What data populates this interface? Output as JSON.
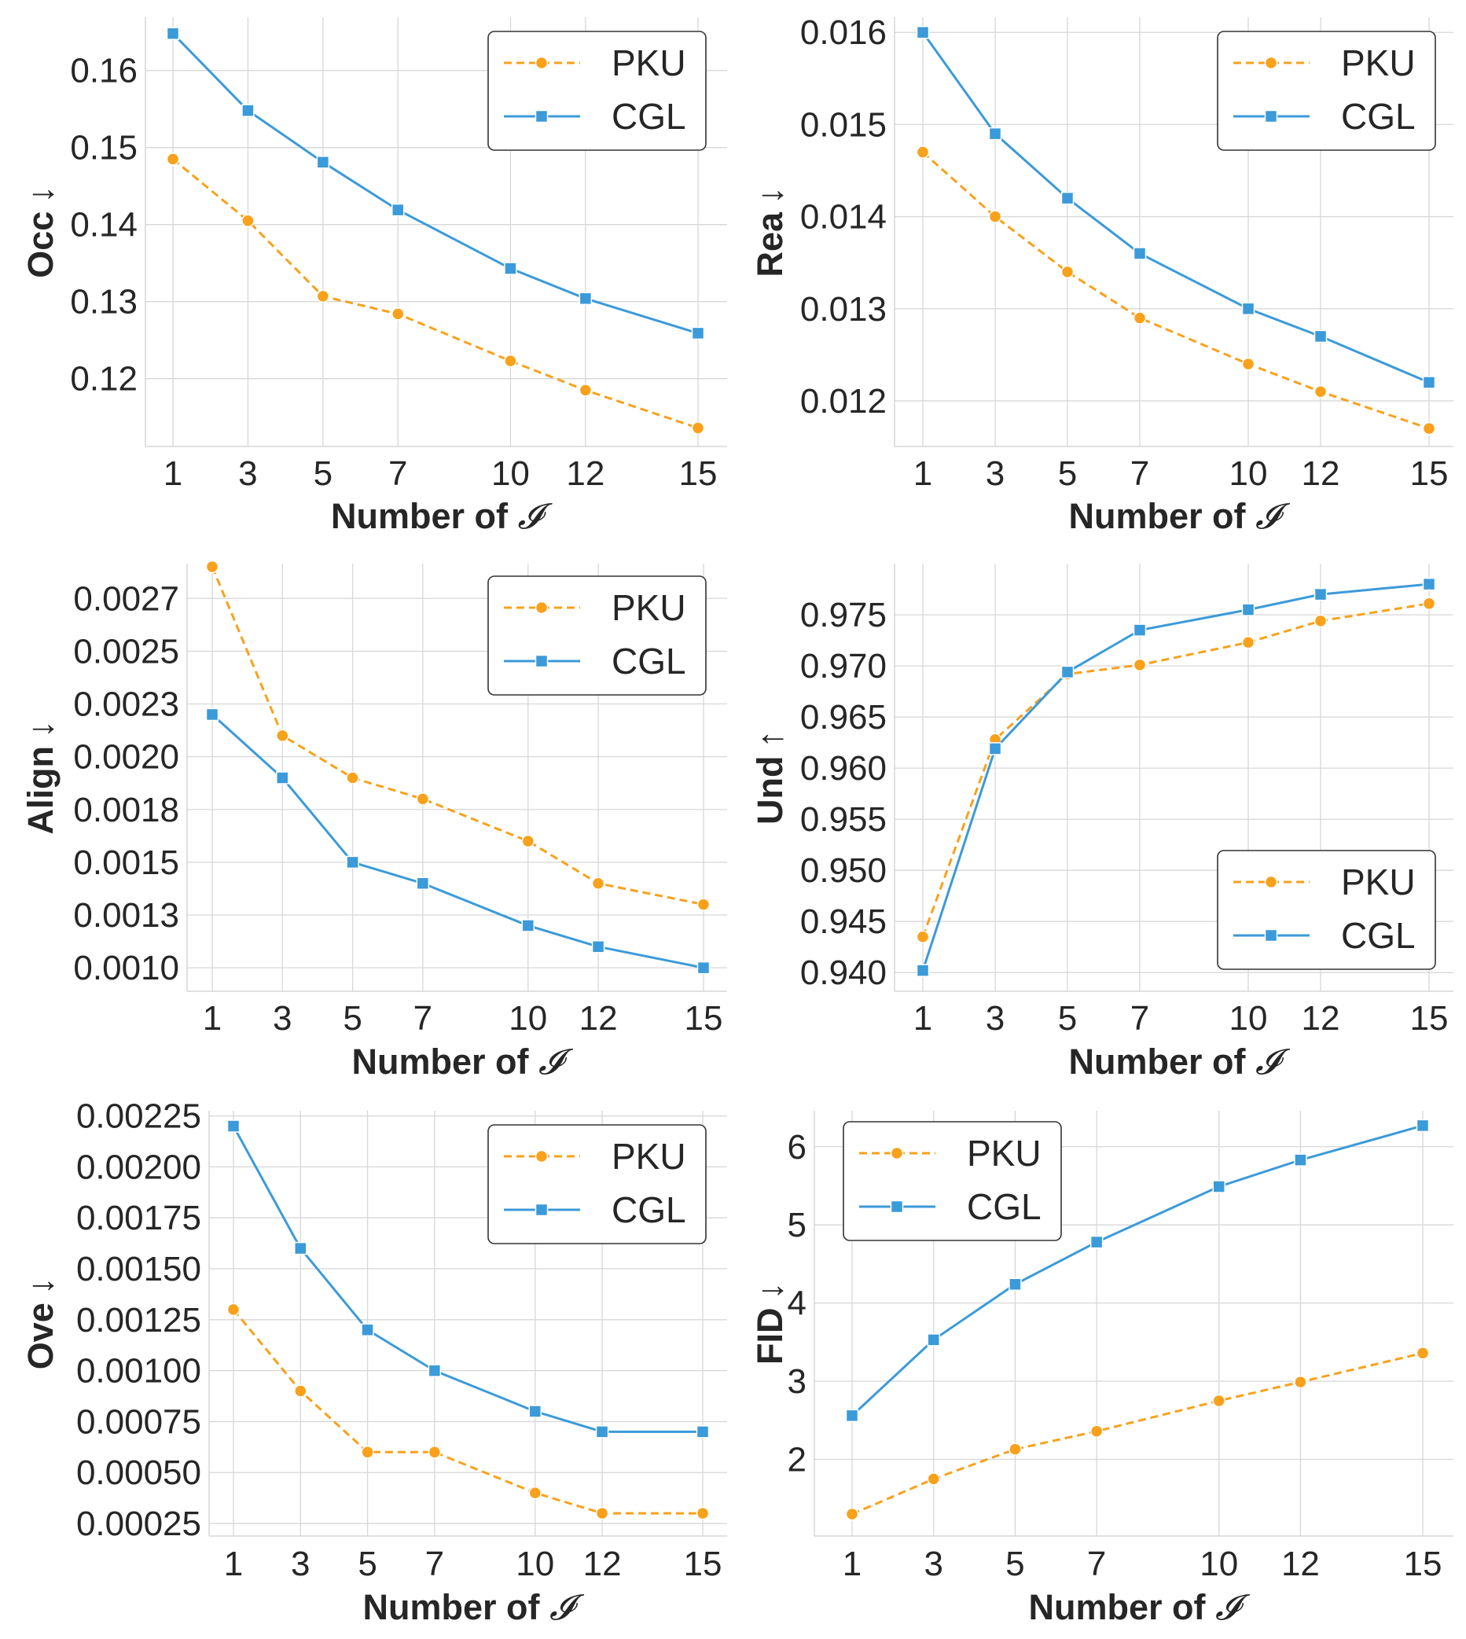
{
  "chart_data": [
    {
      "type": "line",
      "title": "",
      "xlabel": "Number of",
      "xlabel_symbol": "𝓘",
      "ylabel": "Occ",
      "ylabel_arrow": "↓",
      "x": [
        1,
        3,
        5,
        7,
        10,
        12,
        15
      ],
      "x_ticks": [
        "1",
        "3",
        "5",
        "7",
        "10",
        "12",
        "15"
      ],
      "y_ticks": [
        "0.12",
        "0.13",
        "0.14",
        "0.15",
        "0.16"
      ],
      "y_tick_values": [
        0.12,
        0.13,
        0.14,
        0.15,
        0.16
      ],
      "ylim": [
        0.1115,
        0.1665
      ],
      "legend_position": "top-right",
      "grid": true,
      "series": [
        {
          "name": "PKU",
          "color": "#f9a11b",
          "marker": "circle",
          "dashed": true,
          "values": [
            0.1485,
            0.1405,
            0.1307,
            0.1284,
            0.1223,
            0.1185,
            0.1136
          ]
        },
        {
          "name": "CGL",
          "color": "#3b9ad9",
          "marker": "square",
          "dashed": false,
          "values": [
            0.1648,
            0.1548,
            0.1481,
            0.1419,
            0.1343,
            0.1304,
            0.1259
          ]
        }
      ]
    },
    {
      "type": "line",
      "title": "",
      "xlabel": "Number of",
      "xlabel_symbol": "𝓘",
      "ylabel": "Rea",
      "ylabel_arrow": "↓",
      "x": [
        1,
        3,
        5,
        7,
        10,
        12,
        15
      ],
      "x_ticks": [
        "1",
        "3",
        "5",
        "7",
        "10",
        "12",
        "15"
      ],
      "y_ticks": [
        "0.012",
        "0.013",
        "0.014",
        "0.015",
        "0.016"
      ],
      "y_tick_values": [
        0.012,
        0.013,
        0.014,
        0.015,
        0.016
      ],
      "ylim": [
        0.01153,
        0.01613
      ],
      "legend_position": "top-right",
      "grid": true,
      "series": [
        {
          "name": "PKU",
          "color": "#f9a11b",
          "marker": "circle",
          "dashed": true,
          "values": [
            0.0147,
            0.014,
            0.0134,
            0.0129,
            0.0124,
            0.0121,
            0.0117
          ]
        },
        {
          "name": "CGL",
          "color": "#3b9ad9",
          "marker": "square",
          "dashed": false,
          "values": [
            0.016,
            0.0149,
            0.0142,
            0.0136,
            0.013,
            0.0127,
            0.0122
          ]
        }
      ]
    },
    {
      "type": "line",
      "title": "",
      "xlabel": "Number of",
      "xlabel_symbol": "𝓘",
      "ylabel": "Align",
      "ylabel_arrow": "↓",
      "x": [
        1,
        3,
        5,
        7,
        10,
        12,
        15
      ],
      "x_ticks": [
        "1",
        "3",
        "5",
        "7",
        "10",
        "12",
        "15"
      ],
      "y_ticks": [
        "0.0010",
        "0.0013",
        "0.0015",
        "0.0018",
        "0.0020",
        "0.0023",
        "0.0025",
        "0.0027"
      ],
      "y_tick_values": [
        0.001,
        0.00125,
        0.0015,
        0.00175,
        0.002,
        0.00225,
        0.0025,
        0.00275
      ],
      "ylim": [
        0.0009,
        0.0029
      ],
      "legend_position": "top-right",
      "grid": true,
      "series": [
        {
          "name": "PKU",
          "color": "#f9a11b",
          "marker": "circle",
          "dashed": true,
          "values": [
            0.0029,
            0.0021,
            0.0019,
            0.0018,
            0.0016,
            0.0014,
            0.0013
          ]
        },
        {
          "name": "CGL",
          "color": "#3b9ad9",
          "marker": "square",
          "dashed": false,
          "values": [
            0.0022,
            0.0019,
            0.0015,
            0.0014,
            0.0012,
            0.0011,
            0.001
          ]
        }
      ]
    },
    {
      "type": "line",
      "title": "",
      "xlabel": "Number of",
      "xlabel_symbol": "𝓘",
      "ylabel": "Und",
      "ylabel_arrow": "↑",
      "x": [
        1,
        3,
        5,
        7,
        10,
        12,
        15
      ],
      "x_ticks": [
        "1",
        "3",
        "5",
        "7",
        "10",
        "12",
        "15"
      ],
      "y_ticks": [
        "0.940",
        "0.945",
        "0.950",
        "0.955",
        "0.960",
        "0.965",
        "0.970",
        "0.975"
      ],
      "y_tick_values": [
        0.94,
        0.945,
        0.95,
        0.955,
        0.96,
        0.965,
        0.97,
        0.975
      ],
      "ylim": [
        0.9384,
        0.9797
      ],
      "legend_position": "lower-right",
      "grid": true,
      "series": [
        {
          "name": "PKU",
          "color": "#f9a11b",
          "marker": "circle",
          "dashed": true,
          "values": [
            0.9435,
            0.9628,
            0.9692,
            0.9701,
            0.9723,
            0.9744,
            0.9761
          ]
        },
        {
          "name": "CGL",
          "color": "#3b9ad9",
          "marker": "square",
          "dashed": false,
          "values": [
            0.9402,
            0.9619,
            0.9694,
            0.9735,
            0.9755,
            0.977,
            0.978
          ]
        }
      ]
    },
    {
      "type": "line",
      "title": "",
      "xlabel": "Number of",
      "xlabel_symbol": "𝓘",
      "ylabel": "Ove",
      "ylabel_arrow": "↓",
      "x": [
        1,
        3,
        5,
        7,
        10,
        12,
        15
      ],
      "x_ticks": [
        "1",
        "3",
        "5",
        "7",
        "10",
        "12",
        "15"
      ],
      "y_ticks": [
        "0.00025",
        "0.00050",
        "0.00075",
        "0.00100",
        "0.00125",
        "0.00150",
        "0.00175",
        "0.00200",
        "0.00225"
      ],
      "y_tick_values": [
        0.00025,
        0.0005,
        0.00075,
        0.001,
        0.00125,
        0.0015,
        0.00175,
        0.002,
        0.00225
      ],
      "ylim": [
        0.0002,
        0.00226
      ],
      "legend_position": "top-right",
      "grid": true,
      "series": [
        {
          "name": "PKU",
          "color": "#f9a11b",
          "marker": "circle",
          "dashed": true,
          "values": [
            0.0013,
            0.0009,
            0.0006,
            0.0006,
            0.0004,
            0.0003,
            0.0003
          ]
        },
        {
          "name": "CGL",
          "color": "#3b9ad9",
          "marker": "square",
          "dashed": false,
          "values": [
            0.0022,
            0.0016,
            0.0012,
            0.001,
            0.0008,
            0.0007,
            0.0007
          ]
        }
      ]
    },
    {
      "type": "line",
      "title": "",
      "xlabel": "Number of",
      "xlabel_symbol": "𝓘",
      "ylabel": "FID",
      "ylabel_arrow": "↓",
      "x": [
        1,
        3,
        5,
        7,
        10,
        12,
        15
      ],
      "x_ticks": [
        "1",
        "3",
        "5",
        "7",
        "10",
        "12",
        "15"
      ],
      "y_ticks": [
        "2",
        "3",
        "4",
        "5",
        "6"
      ],
      "y_tick_values": [
        2,
        3,
        4,
        5,
        6
      ],
      "ylim": [
        1.05,
        6.42
      ],
      "legend_position": "top-left",
      "grid": true,
      "series": [
        {
          "name": "PKU",
          "color": "#f9a11b",
          "marker": "circle",
          "dashed": true,
          "values": [
            1.3,
            1.75,
            2.13,
            2.36,
            2.75,
            2.99,
            3.36
          ]
        },
        {
          "name": "CGL",
          "color": "#3b9ad9",
          "marker": "square",
          "dashed": false,
          "values": [
            2.56,
            3.53,
            4.24,
            4.78,
            5.49,
            5.83,
            6.27
          ]
        }
      ]
    }
  ]
}
